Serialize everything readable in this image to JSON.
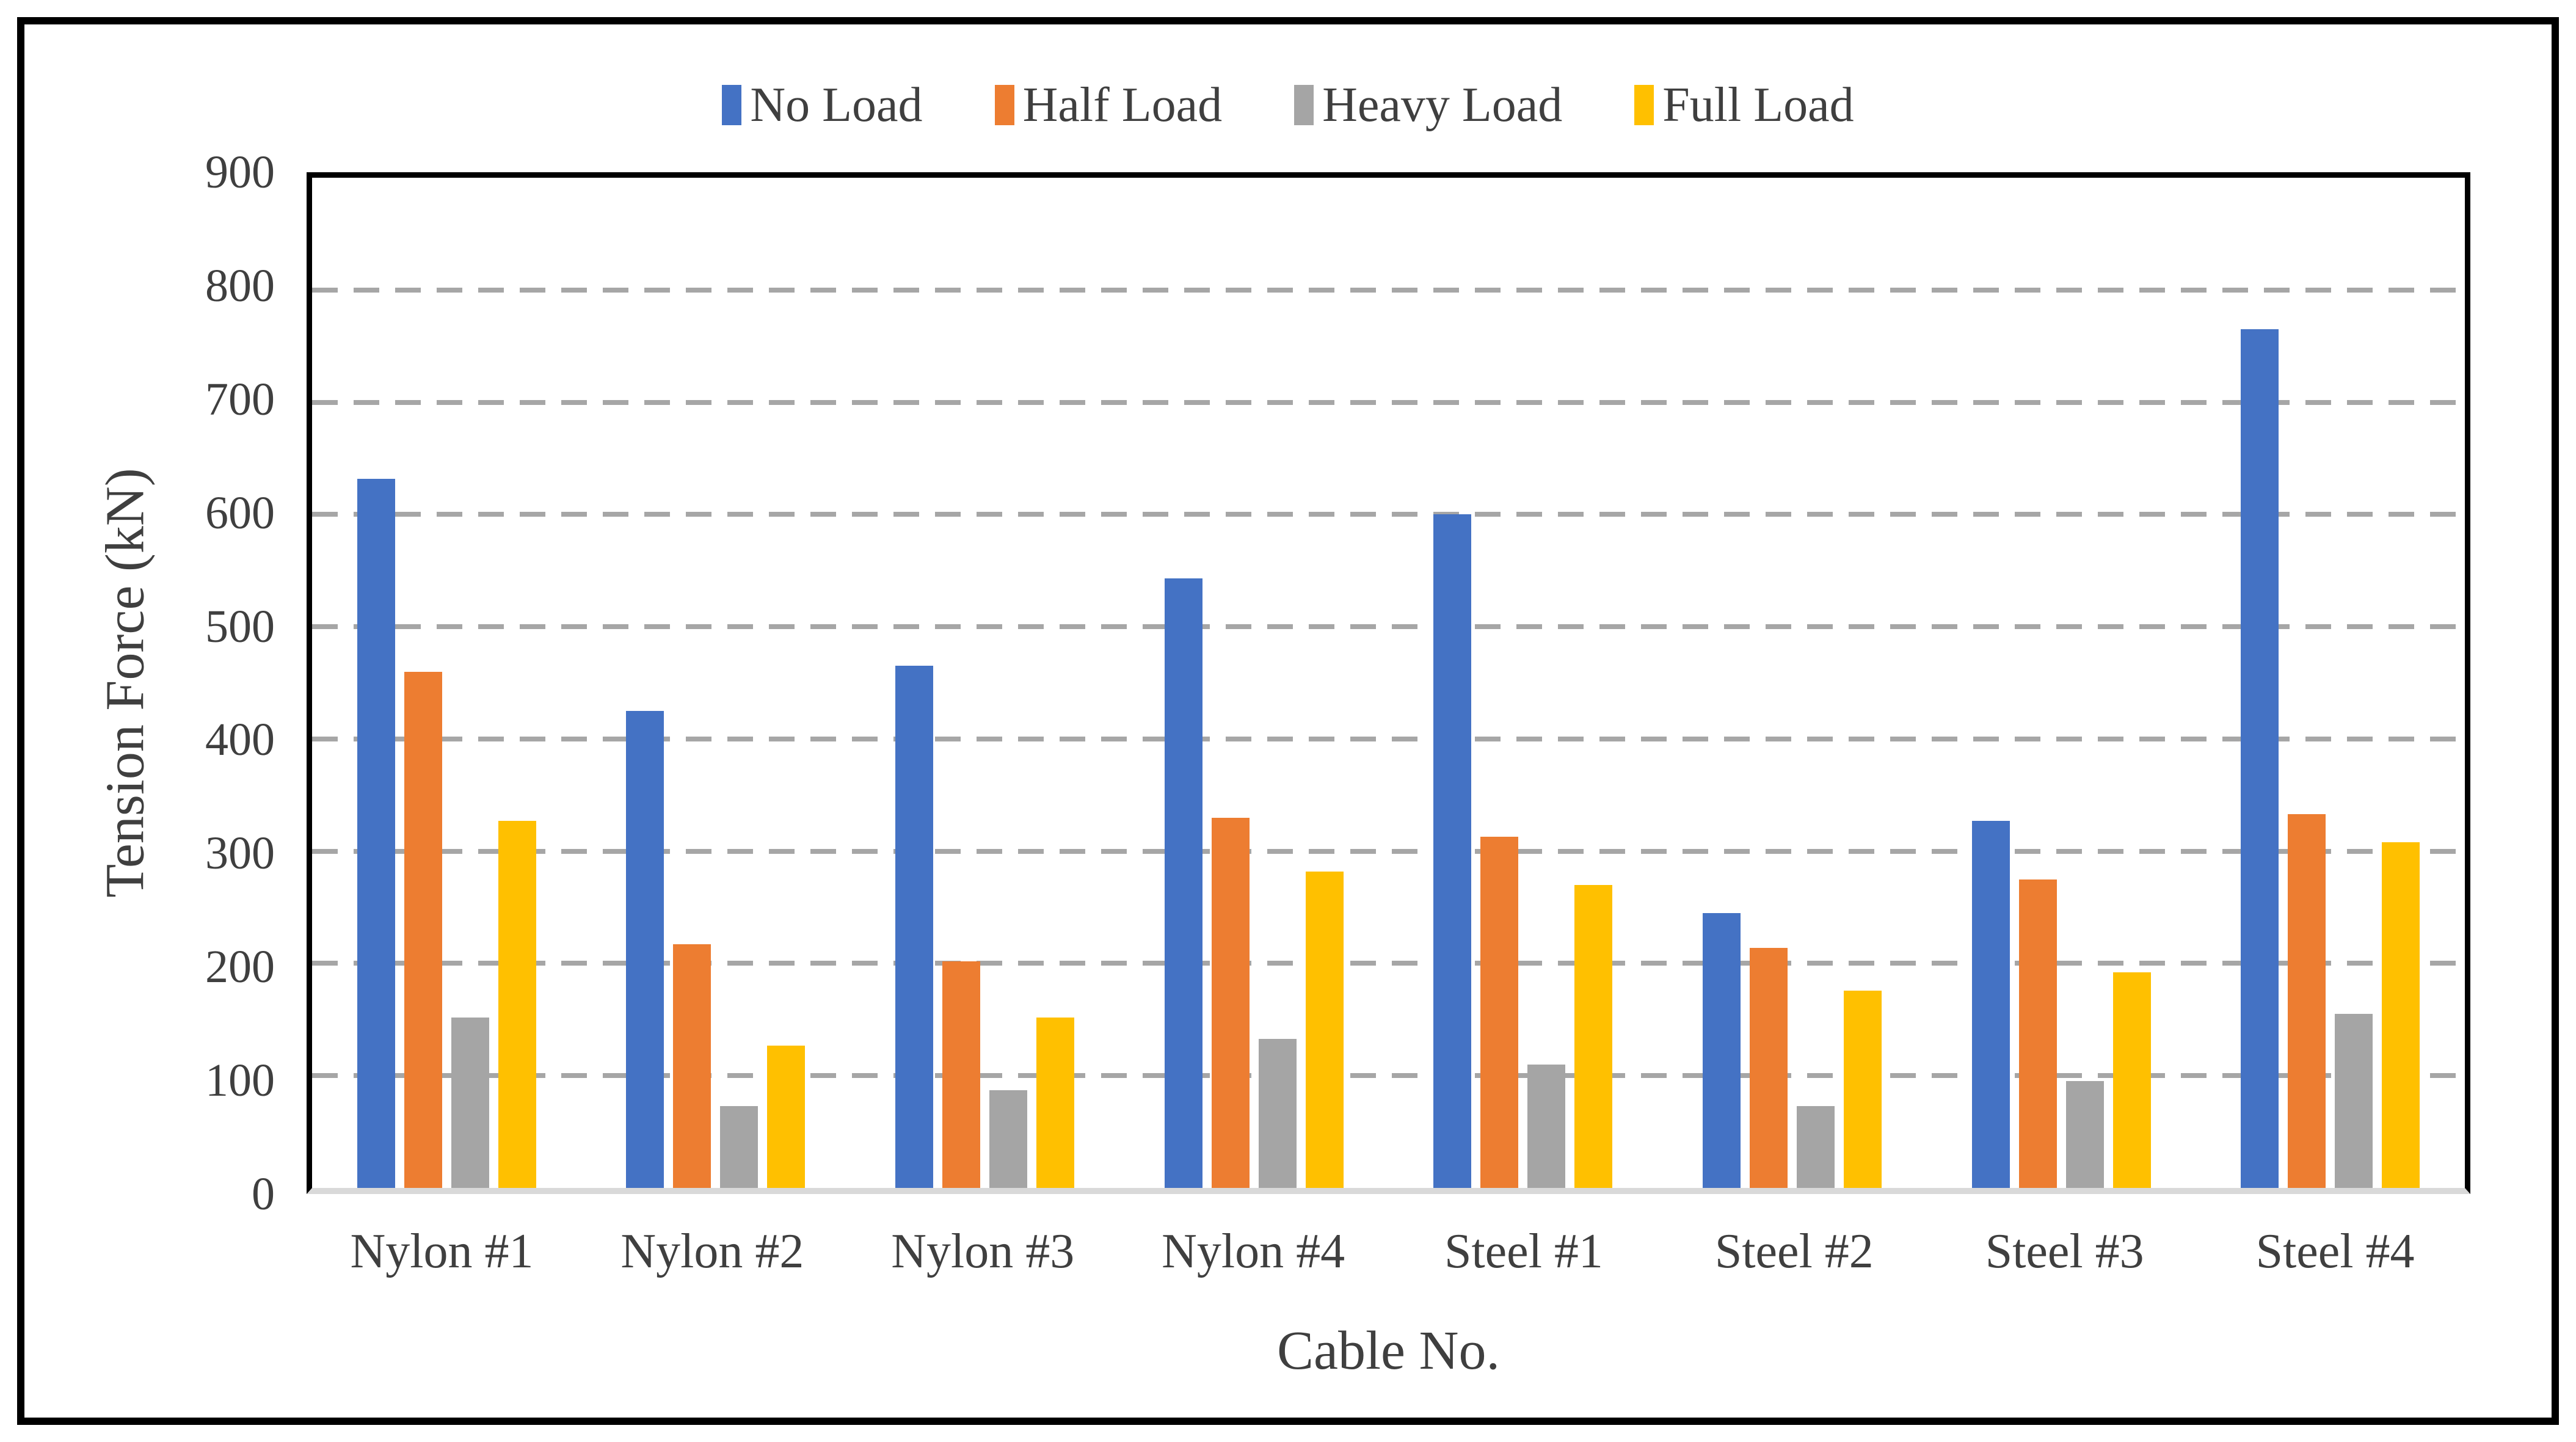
{
  "chart_data": {
    "type": "bar",
    "title": "",
    "xlabel": "Cable No.",
    "ylabel": "Tension Force (kN)",
    "categories": [
      "Nylon #1",
      "Nylon #2",
      "Nylon #3",
      "Nylon #4",
      "Steel #1",
      "Steel #2",
      "Steel #3",
      "Steel #4"
    ],
    "series": [
      {
        "name": "No Load",
        "color": "#4472C4",
        "values": [
          632,
          425,
          465,
          543,
          600,
          245,
          327,
          765
        ]
      },
      {
        "name": "Half Load",
        "color": "#ED7D31",
        "values": [
          460,
          217,
          202,
          330,
          313,
          214,
          275,
          333
        ]
      },
      {
        "name": "Heavy Load",
        "color": "#A5A5A5",
        "values": [
          152,
          73,
          87,
          133,
          110,
          73,
          95,
          155
        ]
      },
      {
        "name": "Full Load",
        "color": "#FFC000",
        "values": [
          327,
          127,
          152,
          282,
          270,
          176,
          192,
          308
        ]
      }
    ],
    "ylim": [
      0,
      900
    ],
    "ytick_interval": 100,
    "grid": "horizontal-dashed",
    "gridline_color": "#A6A6A6",
    "baseline_color": "#D9D9D9",
    "legend_position": "top",
    "text_color": "#3F3F3F"
  }
}
